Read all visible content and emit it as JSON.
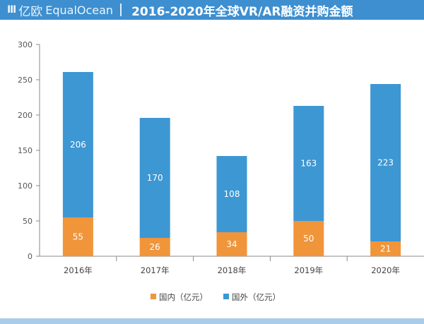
{
  "header": {
    "logo_mark": "Ⅲ",
    "logo_cn": "亿欧",
    "logo_en": "EqualOcean",
    "title": "2016-2020年全球VR/AR融资并购金额"
  },
  "colors": {
    "header_bg": "#3d8fd0",
    "domestic": "#f0953a",
    "foreign": "#3d97d3"
  },
  "chart_data": {
    "type": "bar",
    "stacked": true,
    "title": "2016-2020年全球VR/AR融资并购金额",
    "categories": [
      "2016年",
      "2017年",
      "2018年",
      "2019年",
      "2020年"
    ],
    "series": [
      {
        "name": "国内（亿元）",
        "values": [
          55,
          26,
          34,
          50,
          21
        ]
      },
      {
        "name": "国外（亿元）",
        "values": [
          206,
          170,
          108,
          163,
          223
        ]
      }
    ],
    "ylim": [
      0,
      300
    ],
    "yticks": [
      0,
      50,
      100,
      150,
      200,
      250,
      300
    ],
    "xlabel": "",
    "ylabel": "",
    "legend_position": "bottom"
  }
}
